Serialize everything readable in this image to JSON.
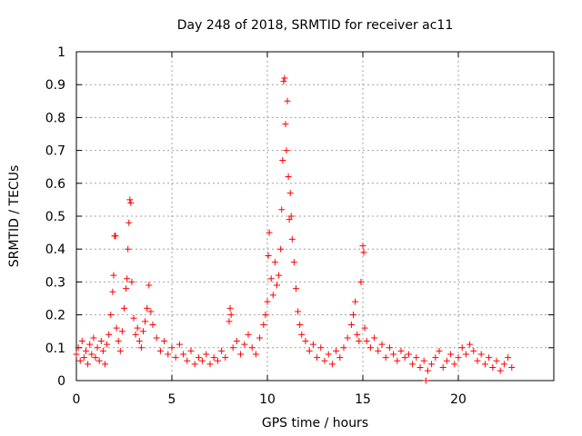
{
  "chart_data": {
    "type": "scatter",
    "title": "Day 248 of 2018, SRMTID for receiver ac11",
    "xlabel": "GPS time / hours",
    "ylabel": "SRMTID / TECUs",
    "xlim": [
      0,
      25
    ],
    "ylim": [
      0,
      1
    ],
    "xticks": [
      "0",
      "5",
      "10",
      "15",
      "20"
    ],
    "yticks": [
      "0",
      "0.1",
      "0.2",
      "0.3",
      "0.4",
      "0.5",
      "0.6",
      "0.7",
      "0.8",
      "0.9",
      "1"
    ],
    "grid": true,
    "series_color": "#ff0000",
    "points": [
      [
        0.0,
        0.08
      ],
      [
        0.1,
        0.1
      ],
      [
        0.2,
        0.06
      ],
      [
        0.3,
        0.12
      ],
      [
        0.4,
        0.07
      ],
      [
        0.5,
        0.09
      ],
      [
        0.6,
        0.05
      ],
      [
        0.7,
        0.11
      ],
      [
        0.8,
        0.08
      ],
      [
        0.9,
        0.13
      ],
      [
        1.0,
        0.07
      ],
      [
        1.1,
        0.1
      ],
      [
        1.2,
        0.06
      ],
      [
        1.3,
        0.12
      ],
      [
        1.4,
        0.09
      ],
      [
        1.5,
        0.05
      ],
      [
        1.6,
        0.11
      ],
      [
        1.7,
        0.14
      ],
      [
        1.8,
        0.2
      ],
      [
        1.9,
        0.27
      ],
      [
        1.95,
        0.32
      ],
      [
        2.0,
        0.44
      ],
      [
        2.05,
        0.44
      ],
      [
        2.1,
        0.16
      ],
      [
        2.2,
        0.12
      ],
      [
        2.3,
        0.09
      ],
      [
        2.4,
        0.15
      ],
      [
        2.5,
        0.22
      ],
      [
        2.6,
        0.28
      ],
      [
        2.65,
        0.31
      ],
      [
        2.7,
        0.4
      ],
      [
        2.75,
        0.48
      ],
      [
        2.8,
        0.55
      ],
      [
        2.85,
        0.54
      ],
      [
        2.9,
        0.3
      ],
      [
        3.0,
        0.19
      ],
      [
        3.1,
        0.14
      ],
      [
        3.2,
        0.16
      ],
      [
        3.3,
        0.12
      ],
      [
        3.4,
        0.1
      ],
      [
        3.5,
        0.15
      ],
      [
        3.6,
        0.18
      ],
      [
        3.7,
        0.22
      ],
      [
        3.8,
        0.29
      ],
      [
        3.9,
        0.21
      ],
      [
        4.0,
        0.17
      ],
      [
        4.2,
        0.13
      ],
      [
        4.4,
        0.09
      ],
      [
        4.6,
        0.12
      ],
      [
        4.8,
        0.08
      ],
      [
        5.0,
        0.1
      ],
      [
        5.2,
        0.07
      ],
      [
        5.4,
        0.11
      ],
      [
        5.6,
        0.08
      ],
      [
        5.8,
        0.06
      ],
      [
        6.0,
        0.09
      ],
      [
        6.2,
        0.05
      ],
      [
        6.4,
        0.07
      ],
      [
        6.6,
        0.06
      ],
      [
        6.8,
        0.08
      ],
      [
        7.0,
        0.05
      ],
      [
        7.2,
        0.07
      ],
      [
        7.4,
        0.06
      ],
      [
        7.6,
        0.09
      ],
      [
        7.8,
        0.07
      ],
      [
        8.0,
        0.18
      ],
      [
        8.05,
        0.22
      ],
      [
        8.1,
        0.2
      ],
      [
        8.2,
        0.1
      ],
      [
        8.4,
        0.12
      ],
      [
        8.6,
        0.08
      ],
      [
        8.8,
        0.11
      ],
      [
        9.0,
        0.14
      ],
      [
        9.2,
        0.1
      ],
      [
        9.4,
        0.08
      ],
      [
        9.6,
        0.13
      ],
      [
        9.8,
        0.17
      ],
      [
        9.9,
        0.2
      ],
      [
        10.0,
        0.24
      ],
      [
        10.05,
        0.38
      ],
      [
        10.1,
        0.45
      ],
      [
        10.2,
        0.31
      ],
      [
        10.3,
        0.26
      ],
      [
        10.4,
        0.36
      ],
      [
        10.5,
        0.29
      ],
      [
        10.6,
        0.32
      ],
      [
        10.7,
        0.4
      ],
      [
        10.75,
        0.52
      ],
      [
        10.8,
        0.67
      ],
      [
        10.85,
        0.91
      ],
      [
        10.9,
        0.92
      ],
      [
        10.95,
        0.78
      ],
      [
        11.0,
        0.7
      ],
      [
        11.05,
        0.85
      ],
      [
        11.1,
        0.62
      ],
      [
        11.15,
        0.49
      ],
      [
        11.2,
        0.57
      ],
      [
        11.25,
        0.5
      ],
      [
        11.3,
        0.43
      ],
      [
        11.4,
        0.36
      ],
      [
        11.5,
        0.28
      ],
      [
        11.6,
        0.21
      ],
      [
        11.7,
        0.17
      ],
      [
        11.8,
        0.14
      ],
      [
        12.0,
        0.12
      ],
      [
        12.2,
        0.09
      ],
      [
        12.4,
        0.11
      ],
      [
        12.6,
        0.07
      ],
      [
        12.8,
        0.1
      ],
      [
        13.0,
        0.06
      ],
      [
        13.2,
        0.08
      ],
      [
        13.4,
        0.05
      ],
      [
        13.6,
        0.09
      ],
      [
        13.8,
        0.07
      ],
      [
        14.0,
        0.1
      ],
      [
        14.2,
        0.13
      ],
      [
        14.4,
        0.17
      ],
      [
        14.5,
        0.2
      ],
      [
        14.6,
        0.24
      ],
      [
        14.7,
        0.14
      ],
      [
        14.8,
        0.12
      ],
      [
        14.9,
        0.3
      ],
      [
        15.0,
        0.41
      ],
      [
        15.05,
        0.39
      ],
      [
        15.1,
        0.16
      ],
      [
        15.2,
        0.12
      ],
      [
        15.4,
        0.1
      ],
      [
        15.6,
        0.13
      ],
      [
        15.8,
        0.09
      ],
      [
        16.0,
        0.11
      ],
      [
        16.2,
        0.07
      ],
      [
        16.4,
        0.1
      ],
      [
        16.6,
        0.08
      ],
      [
        16.8,
        0.06
      ],
      [
        17.0,
        0.09
      ],
      [
        17.2,
        0.07
      ],
      [
        17.4,
        0.08
      ],
      [
        17.6,
        0.05
      ],
      [
        17.8,
        0.07
      ],
      [
        18.0,
        0.04
      ],
      [
        18.2,
        0.06
      ],
      [
        18.3,
        0.0
      ],
      [
        18.4,
        0.03
      ],
      [
        18.6,
        0.05
      ],
      [
        18.8,
        0.07
      ],
      [
        19.0,
        0.09
      ],
      [
        19.2,
        0.04
      ],
      [
        19.4,
        0.06
      ],
      [
        19.6,
        0.08
      ],
      [
        19.8,
        0.05
      ],
      [
        20.0,
        0.07
      ],
      [
        20.2,
        0.1
      ],
      [
        20.4,
        0.08
      ],
      [
        20.6,
        0.11
      ],
      [
        20.8,
        0.09
      ],
      [
        21.0,
        0.06
      ],
      [
        21.2,
        0.08
      ],
      [
        21.4,
        0.05
      ],
      [
        21.6,
        0.07
      ],
      [
        21.8,
        0.04
      ],
      [
        22.0,
        0.06
      ],
      [
        22.2,
        0.03
      ],
      [
        22.4,
        0.05
      ],
      [
        22.6,
        0.07
      ],
      [
        22.8,
        0.04
      ]
    ]
  }
}
